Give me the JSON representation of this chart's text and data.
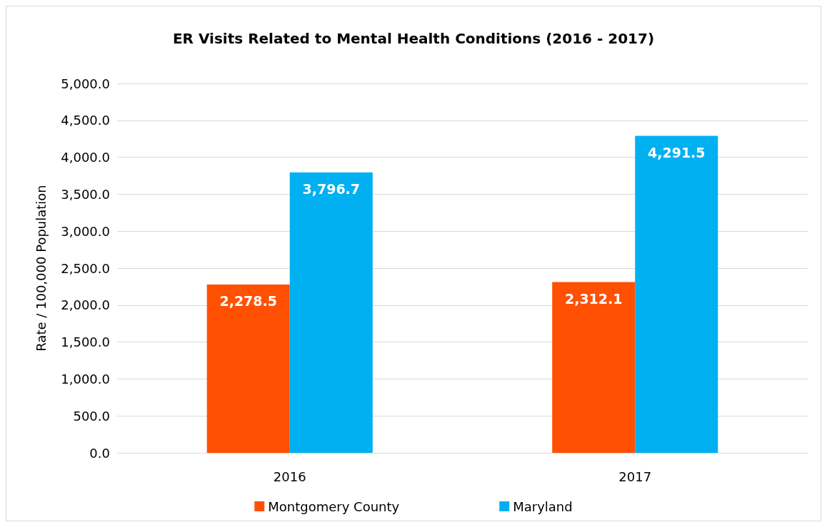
{
  "chart_data": {
    "type": "bar",
    "title": "ER Visits Related to Mental Health Conditions (2016 - 2017)",
    "ylabel": "Rate / 100,000 Population",
    "categories": [
      "2016",
      "2017"
    ],
    "series": [
      {
        "name": "Montgomery County",
        "color": "#ff5003",
        "values": [
          2278.5,
          2312.1
        ],
        "value_labels": [
          "2,278.5",
          "2,312.1"
        ]
      },
      {
        "name": "Maryland",
        "color": "#00b0f0",
        "values": [
          3796.7,
          4291.5
        ],
        "value_labels": [
          "3,796.7",
          "4,291.5"
        ]
      }
    ],
    "ylim": [
      0,
      5000
    ],
    "yticks": [
      {
        "value": 0,
        "label": "0.0"
      },
      {
        "value": 500,
        "label": "500.0"
      },
      {
        "value": 1000,
        "label": "1,000.0"
      },
      {
        "value": 1500,
        "label": "1,500.0"
      },
      {
        "value": 2000,
        "label": "2,000.0"
      },
      {
        "value": 2500,
        "label": "2,500.0"
      },
      {
        "value": 3000,
        "label": "3,000.0"
      },
      {
        "value": 3500,
        "label": "3,500.0"
      },
      {
        "value": 4000,
        "label": "4,000.0"
      },
      {
        "value": 4500,
        "label": "4,500.0"
      },
      {
        "value": 5000,
        "label": "5,000.0"
      }
    ],
    "grid": "y",
    "legend": "bottom"
  }
}
